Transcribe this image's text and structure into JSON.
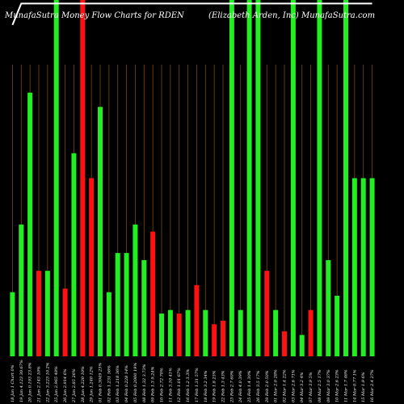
{
  "header": {
    "title_left": "MunafaSutra  Money Flow  Charts for RDEN",
    "title_right": "(Elizabeth Arden,  Inc)  MunafaSutra.com"
  },
  "chart_data": {
    "type": "bar",
    "title": "MunafaSutra  Money Flow  Charts for RDEN",
    "subtitle": "(Elizabeth Arden,  Inc)  MunafaSutra.com",
    "colors": {
      "up": "#22ee22",
      "down": "#ff1111",
      "line": "#ffffff",
      "grid": "#7a4a10",
      "background": "#000000"
    },
    "ylim": [
      0,
      100
    ],
    "categories": [
      "18 Jan 1 Chart 0%",
      "19 Jan 4.123 30.67%",
      "20 Jan 0.193 23.8%",
      "21 Jan 2.145 10%",
      "22 Jan 3.223 10.2%",
      "25 Jan 2.965 48%",
      "26 Jan 2.914 6%",
      "27 Jan 2.85 26%",
      "28 Jan 4.220 10%",
      "29 Jan 1.240 12%",
      "01 Feb 0.3049 23%",
      "02 Feb 1.231 56%",
      "03 Feb 1.218 36%",
      "04 Feb 0.228 14%",
      "05 Feb 0.2000 19%",
      "08 Feb 1.32 3.73%",
      "09 Feb 1.3 9.24%",
      "10 Feb 2.72 70%",
      "11 Feb 3.10 41%",
      "12 Feb 1.01 67%",
      "16 Feb 1.2 3.3%",
      "17 Feb 1.31 57%",
      "18 Feb 3.2 34%",
      "19 Feb 1.8 25%",
      "22 Feb 1.3 43%",
      "23 Feb 2.7 60%",
      "24 Feb 4.0 39%",
      "25 Feb 1.4 30%",
      "26 Feb 3.5 17%",
      "29 Feb 2.0 50%",
      "01 Mar 2.0 28%",
      "02 Mar 1.4 22%",
      "03 Mar 2.6 71%",
      "04 Mar 3.2 4%",
      "07 Mar 3.9 5%",
      "08 Mar 2.5 17%",
      "09 Mar 3.0 37%",
      "10 Mar 2.6 23%",
      "11 Mar 1.7 46%",
      "14 Mar 0.77 1%",
      "15 Mar 1.9 6%",
      "16 Mar 2.4 27%"
    ],
    "values": [
      18,
      37,
      74,
      24,
      24,
      100,
      19,
      57,
      100,
      50,
      70,
      18,
      29,
      29,
      37,
      27,
      35,
      12,
      13,
      12,
      13,
      20,
      13,
      9,
      10,
      100,
      13,
      100,
      100,
      24,
      13,
      7,
      100,
      6,
      13,
      100,
      27,
      17,
      100,
      50,
      50,
      50
    ],
    "directions": [
      "up",
      "up",
      "up",
      "down",
      "up",
      "up",
      "down",
      "up",
      "down",
      "down",
      "up",
      "up",
      "up",
      "up",
      "up",
      "up",
      "down",
      "up",
      "up",
      "down",
      "up",
      "down",
      "up",
      "down",
      "down",
      "up",
      "up",
      "up",
      "up",
      "down",
      "up",
      "down",
      "up",
      "up",
      "down",
      "up",
      "up",
      "up",
      "up",
      "up",
      "up",
      "up"
    ],
    "line_values": [
      93,
      99,
      99,
      99,
      99,
      99,
      99,
      99,
      99,
      99,
      99,
      99,
      99,
      99,
      99,
      99,
      99,
      99,
      99,
      99,
      99,
      99,
      99,
      99,
      99,
      99,
      99,
      99,
      99,
      99,
      99,
      99,
      99,
      99,
      99,
      99,
      99,
      99,
      99,
      99,
      99,
      99
    ]
  }
}
